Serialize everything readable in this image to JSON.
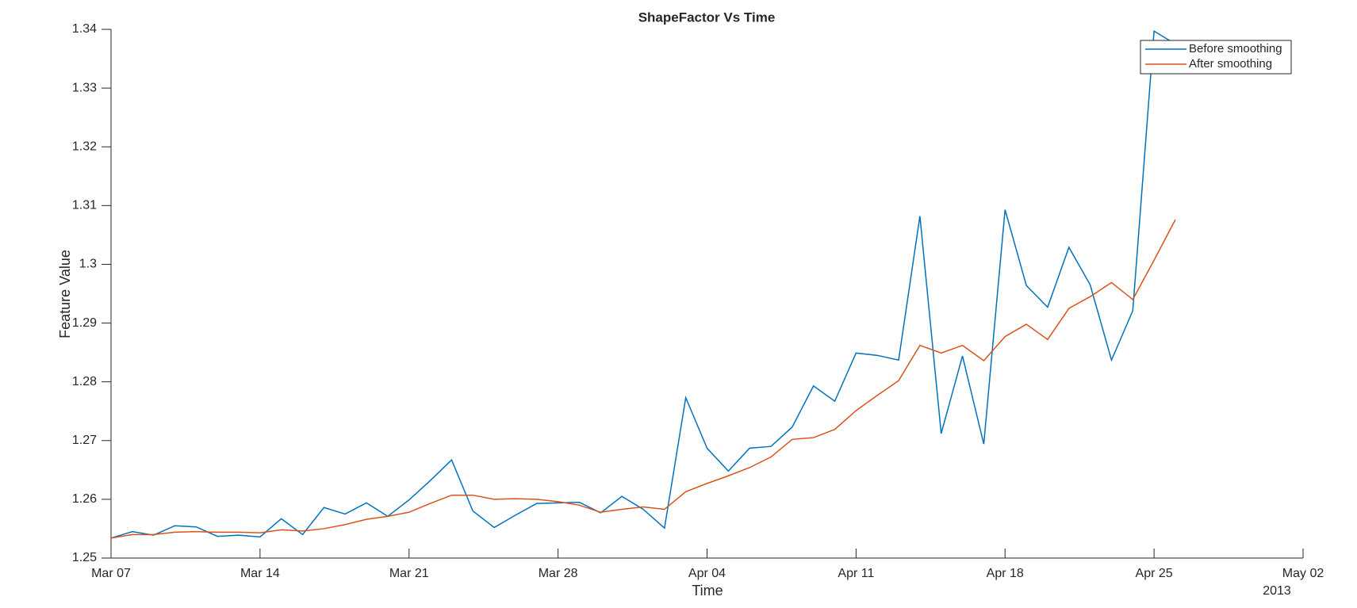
{
  "chart_data": {
    "type": "line",
    "title": "ShapeFactor Vs Time",
    "xlabel": "Time",
    "ylabel": "Feature Value",
    "x_year_label": "2013",
    "x": [
      "2013-03-07",
      "2013-03-08",
      "2013-03-09",
      "2013-03-10",
      "2013-03-11",
      "2013-03-12",
      "2013-03-13",
      "2013-03-14",
      "2013-03-15",
      "2013-03-16",
      "2013-03-17",
      "2013-03-18",
      "2013-03-19",
      "2013-03-20",
      "2013-03-21",
      "2013-03-22",
      "2013-03-23",
      "2013-03-24",
      "2013-03-25",
      "2013-03-26",
      "2013-03-27",
      "2013-03-28",
      "2013-03-29",
      "2013-03-30",
      "2013-03-31",
      "2013-04-01",
      "2013-04-02",
      "2013-04-03",
      "2013-04-04",
      "2013-04-05",
      "2013-04-06",
      "2013-04-07",
      "2013-04-08",
      "2013-04-09",
      "2013-04-10",
      "2013-04-11",
      "2013-04-12",
      "2013-04-13",
      "2013-04-14",
      "2013-04-15",
      "2013-04-16",
      "2013-04-17",
      "2013-04-18",
      "2013-04-19",
      "2013-04-20",
      "2013-04-21",
      "2013-04-22",
      "2013-04-23",
      "2013-04-24",
      "2013-04-25",
      "2013-04-26"
    ],
    "series": [
      {
        "name": "Before smoothing",
        "color": "#0072bd",
        "values": [
          1.2534,
          1.2545,
          1.2539,
          1.2555,
          1.2553,
          1.2537,
          1.2539,
          1.2536,
          1.2567,
          1.254,
          1.2586,
          1.2575,
          1.2594,
          1.2571,
          1.2599,
          1.2632,
          1.2667,
          1.258,
          1.2552,
          1.2573,
          1.2593,
          1.2594,
          1.2595,
          1.2577,
          1.2605,
          1.2583,
          1.2551,
          1.2773,
          1.2687,
          1.2648,
          1.2687,
          1.269,
          1.2723,
          1.2793,
          1.2767,
          1.2849,
          1.2845,
          1.2837,
          1.3082,
          1.2712,
          1.2844,
          1.2694,
          1.3093,
          1.2964,
          1.2927,
          1.3029,
          1.2965,
          1.2837,
          1.2921,
          1.3397,
          1.3375
        ]
      },
      {
        "name": "After smoothing",
        "color": "#d95319",
        "values": [
          1.2534,
          1.254,
          1.254,
          1.2544,
          1.2545,
          1.2544,
          1.2544,
          1.2543,
          1.2548,
          1.2546,
          1.255,
          1.2557,
          1.2566,
          1.2571,
          1.2578,
          1.2593,
          1.2607,
          1.2607,
          1.26,
          1.2601,
          1.26,
          1.2596,
          1.259,
          1.2578,
          1.2583,
          1.2587,
          1.2583,
          1.2613,
          1.2627,
          1.264,
          1.2654,
          1.2672,
          1.2702,
          1.2705,
          1.2719,
          1.2751,
          1.2777,
          1.2802,
          1.2862,
          1.2849,
          1.2862,
          1.2836,
          1.2877,
          1.2898,
          1.2872,
          1.2925,
          1.2945,
          1.2969,
          1.294,
          1.3007,
          1.3076
        ]
      }
    ],
    "xlim": [
      "2013-03-07",
      "2013-05-02"
    ],
    "xticks": [
      {
        "value": "2013-03-07",
        "label": "Mar 07"
      },
      {
        "value": "2013-03-14",
        "label": "Mar 14"
      },
      {
        "value": "2013-03-21",
        "label": "Mar 21"
      },
      {
        "value": "2013-03-28",
        "label": "Mar 28"
      },
      {
        "value": "2013-04-04",
        "label": "Apr 04"
      },
      {
        "value": "2013-04-11",
        "label": "Apr 11"
      },
      {
        "value": "2013-04-18",
        "label": "Apr 18"
      },
      {
        "value": "2013-04-25",
        "label": "Apr 25"
      },
      {
        "value": "2013-05-02",
        "label": "May 02"
      }
    ],
    "ylim": [
      1.25,
      1.34
    ],
    "yticks": [
      1.25,
      1.26,
      1.27,
      1.28,
      1.29,
      1.3,
      1.31,
      1.32,
      1.33,
      1.34
    ],
    "grid": false,
    "legend": "top-right"
  }
}
